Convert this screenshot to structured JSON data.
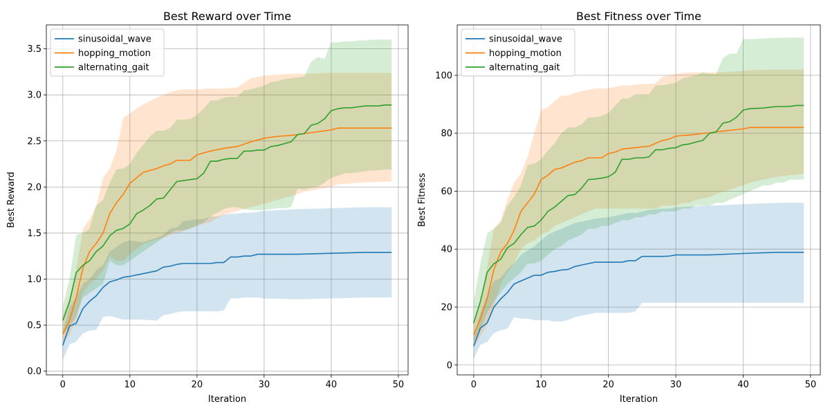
{
  "colors": {
    "sinusoidal_wave": "#1f77b4",
    "hopping_motion": "#ff7f0e",
    "alternating_gait": "#2ca02c",
    "grid": "#b0b0b0"
  },
  "chart_data": [
    {
      "type": "line",
      "title": "Best Reward over Time",
      "xlabel": "Iteration",
      "ylabel": "Best Reward",
      "xlim": [
        -2.45,
        51.45
      ],
      "ylim": [
        -0.04,
        3.76
      ],
      "xticks": [
        0,
        10,
        20,
        30,
        40,
        50
      ],
      "yticks": [
        0.0,
        0.5,
        1.0,
        1.5,
        2.0,
        2.5,
        3.0,
        3.5
      ],
      "ytick_labels": [
        "0.0",
        "0.5",
        "1.0",
        "1.5",
        "2.0",
        "2.5",
        "3.0",
        "3.5"
      ],
      "grid": true,
      "legend_position": "upper-left",
      "series": [
        {
          "name": "sinusoidal_wave",
          "x": [
            0,
            1,
            2,
            3,
            4,
            5,
            6,
            7,
            8,
            9,
            10,
            12,
            14,
            15,
            16,
            17,
            18,
            20,
            21,
            22,
            23,
            24,
            25,
            26,
            27,
            28,
            29,
            30,
            35,
            40,
            45,
            49
          ],
          "mean": [
            0.28,
            0.49,
            0.52,
            0.68,
            0.76,
            0.82,
            0.91,
            0.97,
            0.99,
            1.02,
            1.03,
            1.06,
            1.09,
            1.13,
            1.14,
            1.16,
            1.17,
            1.17,
            1.17,
            1.17,
            1.18,
            1.18,
            1.24,
            1.24,
            1.25,
            1.25,
            1.27,
            1.27,
            1.27,
            1.28,
            1.29,
            1.29
          ],
          "upper": [
            0.43,
            0.69,
            0.81,
            0.95,
            1.0,
            1.1,
            1.15,
            1.3,
            1.35,
            1.4,
            1.42,
            1.4,
            1.45,
            1.48,
            1.55,
            1.56,
            1.63,
            1.65,
            1.65,
            1.68,
            1.68,
            1.7,
            1.71,
            1.71,
            1.72,
            1.72,
            1.73,
            1.74,
            1.76,
            1.77,
            1.78,
            1.78
          ],
          "lower": [
            0.12,
            0.29,
            0.32,
            0.41,
            0.44,
            0.45,
            0.59,
            0.6,
            0.58,
            0.56,
            0.56,
            0.56,
            0.55,
            0.61,
            0.62,
            0.64,
            0.65,
            0.65,
            0.65,
            0.65,
            0.65,
            0.66,
            0.79,
            0.79,
            0.8,
            0.8,
            0.8,
            0.79,
            0.78,
            0.79,
            0.8,
            0.8
          ]
        },
        {
          "name": "hopping_motion",
          "x": [
            0,
            1,
            2,
            3,
            4,
            5,
            6,
            7,
            8,
            9,
            10,
            12,
            14,
            15,
            16,
            17,
            18,
            19,
            20,
            22,
            24,
            26,
            28,
            30,
            32,
            34,
            36,
            40,
            41,
            45,
            49
          ],
          "mean": [
            0.4,
            0.55,
            0.8,
            1.12,
            1.3,
            1.39,
            1.5,
            1.71,
            1.83,
            1.92,
            2.04,
            2.16,
            2.2,
            2.23,
            2.25,
            2.29,
            2.29,
            2.29,
            2.35,
            2.39,
            2.42,
            2.44,
            2.49,
            2.53,
            2.55,
            2.56,
            2.58,
            2.62,
            2.64,
            2.64,
            2.64
          ],
          "upper": [
            0.6,
            0.8,
            1.1,
            1.55,
            1.65,
            1.8,
            2.1,
            2.2,
            2.4,
            2.75,
            2.8,
            2.9,
            2.97,
            3.0,
            3.03,
            3.05,
            3.06,
            3.06,
            3.06,
            3.07,
            3.07,
            3.08,
            3.18,
            3.21,
            3.22,
            3.23,
            3.23,
            3.24,
            3.24,
            3.24,
            3.24
          ],
          "lower": [
            0.3,
            0.4,
            0.55,
            0.85,
            0.95,
            1.0,
            1.1,
            1.25,
            1.2,
            1.2,
            1.27,
            1.38,
            1.43,
            1.45,
            1.48,
            1.5,
            1.52,
            1.55,
            1.58,
            1.62,
            1.7,
            1.74,
            1.78,
            1.82,
            1.86,
            1.9,
            1.95,
            2.0,
            2.03,
            2.05,
            2.06
          ]
        },
        {
          "name": "alternating_gait",
          "x": [
            0,
            1,
            2,
            3,
            4,
            5,
            6,
            7,
            8,
            9,
            10,
            11,
            12,
            13,
            14,
            15,
            16,
            17,
            18,
            19,
            20,
            21,
            22,
            23,
            24,
            25,
            26,
            27,
            28,
            29,
            30,
            31,
            32,
            33,
            34,
            35,
            36,
            37,
            38,
            39,
            40,
            41,
            42,
            43,
            44,
            45,
            46,
            47,
            48,
            49
          ],
          "mean": [
            0.55,
            0.75,
            1.07,
            1.15,
            1.2,
            1.3,
            1.36,
            1.47,
            1.53,
            1.55,
            1.6,
            1.71,
            1.75,
            1.8,
            1.87,
            1.88,
            1.97,
            2.06,
            2.07,
            2.08,
            2.09,
            2.15,
            2.28,
            2.28,
            2.3,
            2.31,
            2.31,
            2.39,
            2.39,
            2.4,
            2.4,
            2.44,
            2.45,
            2.47,
            2.49,
            2.57,
            2.58,
            2.67,
            2.69,
            2.74,
            2.83,
            2.85,
            2.86,
            2.86,
            2.87,
            2.88,
            2.88,
            2.88,
            2.89,
            2.89
          ],
          "upper": [
            0.7,
            1.0,
            1.48,
            1.5,
            1.55,
            1.8,
            1.86,
            2.05,
            2.19,
            2.2,
            2.25,
            2.37,
            2.46,
            2.55,
            2.61,
            2.61,
            2.64,
            2.73,
            2.73,
            2.74,
            2.78,
            2.85,
            2.94,
            2.94,
            2.97,
            2.98,
            2.98,
            3.05,
            3.06,
            3.08,
            3.1,
            3.14,
            3.15,
            3.17,
            3.18,
            3.19,
            3.2,
            3.36,
            3.41,
            3.39,
            3.57,
            3.57,
            3.58,
            3.58,
            3.59,
            3.59,
            3.6,
            3.6,
            3.6,
            3.6
          ],
          "lower": [
            0.4,
            0.48,
            0.6,
            0.8,
            0.85,
            0.9,
            0.95,
            1.2,
            1.15,
            1.15,
            1.2,
            1.25,
            1.3,
            1.35,
            1.4,
            1.45,
            1.5,
            1.53,
            1.53,
            1.55,
            1.58,
            1.62,
            1.68,
            1.72,
            1.76,
            1.78,
            1.78,
            1.76,
            1.75,
            1.75,
            1.75,
            1.76,
            1.77,
            1.77,
            1.78,
            1.98,
            1.97,
            1.99,
            2.0,
            2.05,
            2.1,
            2.12,
            2.15,
            2.15,
            2.16,
            2.17,
            2.18,
            2.18,
            2.19,
            2.19
          ]
        }
      ]
    },
    {
      "type": "line",
      "title": "Best Fitness over Time",
      "xlabel": "Iteration",
      "ylabel": "Best Fitness",
      "xlim": [
        -2.45,
        51.45
      ],
      "ylim": [
        -3.4,
        117.4
      ],
      "xticks": [
        0,
        10,
        20,
        30,
        40,
        50
      ],
      "yticks": [
        0,
        20,
        40,
        60,
        80,
        100
      ],
      "ytick_labels": [
        "0",
        "20",
        "40",
        "60",
        "80",
        "100"
      ],
      "grid": true,
      "legend_position": "upper-left",
      "series": [
        {
          "name": "sinusoidal_wave",
          "x": [
            0,
            1,
            2,
            3,
            4,
            5,
            6,
            7,
            8,
            9,
            10,
            11,
            12,
            13,
            14,
            15,
            16,
            17,
            18,
            20,
            22,
            23,
            24,
            25,
            26,
            28,
            29,
            30,
            35,
            40,
            45,
            49
          ],
          "mean": [
            6.5,
            12.8,
            14.5,
            20,
            22.8,
            25,
            28,
            29,
            30,
            31,
            31,
            32,
            32.3,
            32.8,
            33,
            34,
            34.5,
            35,
            35.5,
            35.5,
            35.5,
            36,
            36,
            37.5,
            37.5,
            37.5,
            37.6,
            38,
            38,
            38.5,
            38.9,
            38.9
          ],
          "upper": [
            10,
            18,
            24,
            29,
            30,
            33,
            35,
            38,
            39.5,
            41,
            43,
            45,
            46,
            47,
            48,
            49,
            49.5,
            50,
            50.5,
            51,
            52,
            52.5,
            52.5,
            53,
            53.5,
            54,
            54,
            54.5,
            55,
            55.5,
            56,
            56
          ],
          "lower": [
            2,
            7,
            8,
            11,
            12,
            12.5,
            16.5,
            16,
            16,
            15.5,
            15.5,
            15.5,
            15,
            15,
            15.5,
            16.5,
            17,
            17.5,
            18,
            18,
            18,
            18,
            18.5,
            21.5,
            21.5,
            21.5,
            21.5,
            21.5,
            21.5,
            21.5,
            21.5,
            21.5
          ]
        },
        {
          "name": "hopping_motion",
          "x": [
            0,
            1,
            2,
            3,
            4,
            5,
            6,
            7,
            8,
            9,
            10,
            11,
            12,
            13,
            14,
            15,
            16,
            17,
            18,
            19,
            20,
            21,
            22,
            23,
            24,
            25,
            26,
            27,
            28,
            29,
            30,
            31,
            32,
            33,
            34,
            35,
            36,
            40,
            41,
            45,
            49
          ],
          "mean": [
            10.5,
            16,
            23,
            33,
            39,
            42,
            46.5,
            53,
            56,
            59,
            64,
            65.5,
            67.5,
            68,
            69,
            70,
            70.5,
            71.5,
            71.5,
            71.5,
            73,
            73.5,
            74.5,
            74.8,
            75,
            75.3,
            75.5,
            76.5,
            77.5,
            78,
            79,
            79.2,
            79.4,
            79.6,
            80,
            80.1,
            80.5,
            81.5,
            82,
            82,
            82
          ],
          "upper": [
            15,
            22,
            34,
            47,
            50,
            57,
            63,
            66,
            72,
            80,
            88,
            89,
            91,
            93,
            93,
            94,
            94.5,
            95,
            95.5,
            95.5,
            95.5,
            96,
            96.5,
            96.5,
            96.8,
            97,
            97,
            97.2,
            99.5,
            100,
            100.5,
            100.8,
            101,
            101,
            101,
            101,
            101,
            101.5,
            101.8,
            102,
            102
          ],
          "lower": [
            6,
            10,
            14,
            20,
            28,
            32,
            35,
            40,
            42,
            43,
            45,
            46,
            48,
            49,
            50,
            51,
            52,
            53,
            54,
            54,
            54,
            54,
            54,
            54,
            54,
            54,
            54,
            54,
            55,
            55,
            55,
            56,
            56,
            57,
            57.5,
            58,
            59,
            62,
            63,
            65,
            66
          ]
        },
        {
          "name": "alternating_gait",
          "x": [
            0,
            1,
            2,
            3,
            4,
            5,
            6,
            7,
            8,
            9,
            10,
            11,
            12,
            13,
            14,
            15,
            16,
            17,
            18,
            19,
            20,
            21,
            22,
            23,
            24,
            25,
            26,
            27,
            28,
            29,
            30,
            31,
            32,
            33,
            34,
            35,
            36,
            37,
            38,
            39,
            40,
            41,
            42,
            43,
            44,
            45,
            46,
            47,
            48,
            49
          ],
          "mean": [
            14.5,
            22,
            32,
            35,
            36.5,
            40.5,
            42,
            45,
            47.5,
            48,
            50,
            53,
            54.5,
            56.5,
            58.5,
            58.8,
            61,
            64,
            64.2,
            64.5,
            65,
            66.5,
            71,
            71,
            71.5,
            71.5,
            71.8,
            74.3,
            74.3,
            74.8,
            75,
            76,
            76.3,
            77,
            77.5,
            80,
            80.5,
            83.5,
            84,
            85.5,
            88,
            88.5,
            88.6,
            88.7,
            89,
            89.2,
            89.2,
            89.3,
            89.6,
            89.6
          ],
          "upper": [
            22,
            35,
            45.5,
            47,
            49,
            55,
            58,
            62,
            69,
            69.5,
            71,
            74,
            76.5,
            80,
            82,
            82,
            83,
            85.5,
            85.5,
            86,
            87,
            89.5,
            92,
            92,
            93.5,
            93.5,
            93.5,
            96.5,
            96.5,
            97,
            97.5,
            99,
            99.5,
            100,
            101,
            100.5,
            100.5,
            106,
            107.5,
            107.5,
            112.5,
            112.5,
            112.6,
            112.7,
            112.8,
            112.9,
            113,
            113,
            113,
            113
          ],
          "lower": [
            8,
            12,
            18,
            22,
            25,
            28,
            30,
            32,
            35,
            35,
            36,
            38,
            40,
            41,
            43,
            44,
            45,
            47,
            47,
            48,
            48,
            49,
            50,
            50,
            51,
            51,
            52,
            52,
            53,
            53,
            53,
            54,
            54,
            55,
            55,
            55,
            56,
            56,
            57,
            58,
            59,
            60,
            61,
            62,
            62,
            63,
            63,
            64,
            64,
            64
          ]
        }
      ]
    }
  ]
}
